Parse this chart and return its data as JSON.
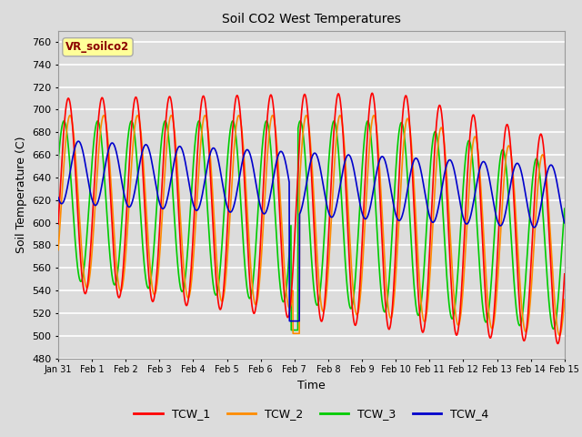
{
  "title": "Soil CO2 West Temperatures",
  "xlabel": "Time",
  "ylabel": "Soil Temperature (C)",
  "ylim": [
    480,
    770
  ],
  "yticks": [
    480,
    500,
    520,
    540,
    560,
    580,
    600,
    620,
    640,
    660,
    680,
    700,
    720,
    740,
    760
  ],
  "annotation_text": "VR_soilco2",
  "annotation_color": "#8B0000",
  "annotation_bg": "#FFFF99",
  "bg_color": "#DCDCDC",
  "grid_color": "white",
  "colors": {
    "TCW_1": "#FF0000",
    "TCW_2": "#FF8C00",
    "TCW_3": "#00CC00",
    "TCW_4": "#0000CC"
  },
  "line_width": 1.2,
  "x_tick_labels": [
    "Jan 31",
    "Feb 1",
    "Feb 2",
    "Feb 3",
    "Feb 4",
    "Feb 5",
    "Feb 6",
    "Feb 7",
    "Feb 8",
    "Feb 9",
    "Feb 10",
    "Feb 11",
    "Feb 12",
    "Feb 13",
    "Feb 14",
    "Feb 15"
  ]
}
